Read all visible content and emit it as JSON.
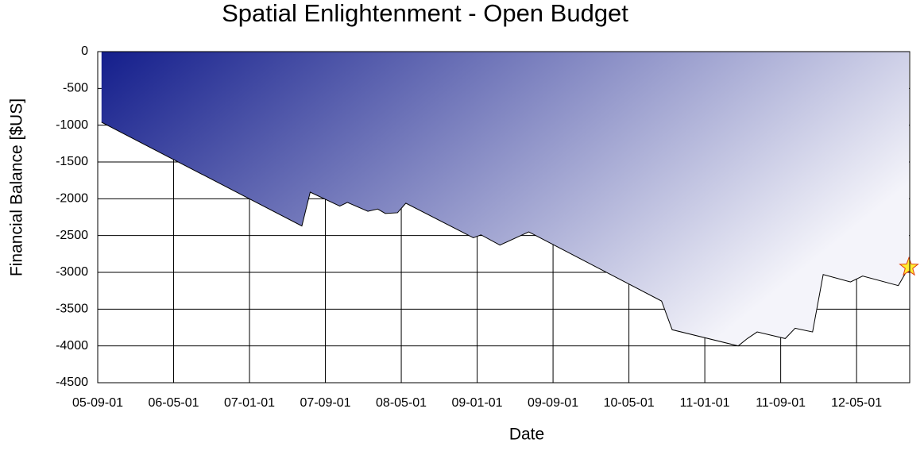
{
  "chart_data": {
    "type": "area",
    "title": "Spatial Enlightenment - Open Budget",
    "x_label": "Date",
    "y_label": "Financial Balance [$US]",
    "x": [
      0.05,
      2.69,
      2.8,
      3.19,
      3.29,
      3.56,
      3.69,
      3.79,
      3.95,
      4.06,
      4.95,
      5.05,
      5.3,
      5.68,
      7.43,
      7.57,
      8.44,
      8.56,
      8.69,
      9.06,
      9.19,
      9.42,
      9.56,
      9.92,
      10.08,
      10.55,
      10.69
    ],
    "y": [
      -960,
      -2370,
      -1910,
      -2100,
      -2050,
      -2170,
      -2140,
      -2200,
      -2190,
      -2060,
      -2530,
      -2490,
      -2630,
      -2450,
      -3390,
      -3780,
      -4000,
      -3900,
      -3810,
      -3900,
      -3760,
      -3810,
      -3030,
      -3130,
      -3050,
      -3180,
      -2930
    ],
    "xlim": [
      0,
      10.7
    ],
    "xticks": [
      {
        "value": 0,
        "label": "05-09-01"
      },
      {
        "value": 1,
        "label": "06-05-01"
      },
      {
        "value": 2,
        "label": "07-01-01"
      },
      {
        "value": 3,
        "label": "07-09-01"
      },
      {
        "value": 4,
        "label": "08-05-01"
      },
      {
        "value": 5,
        "label": "09-01-01"
      },
      {
        "value": 6,
        "label": "09-09-01"
      },
      {
        "value": 7,
        "label": "10-05-01"
      },
      {
        "value": 8,
        "label": "11-01-01"
      },
      {
        "value": 9,
        "label": "11-09-01"
      },
      {
        "value": 10,
        "label": "12-05-01"
      }
    ],
    "ylim": [
      -4500,
      0
    ],
    "yticks": [
      0,
      -500,
      -1000,
      -1500,
      -2000,
      -2500,
      -3000,
      -3500,
      -4000,
      -4500
    ],
    "grid": true,
    "gradient": [
      "#141e8c",
      "#f4f4fa"
    ],
    "marker_color": "#ffee33"
  }
}
